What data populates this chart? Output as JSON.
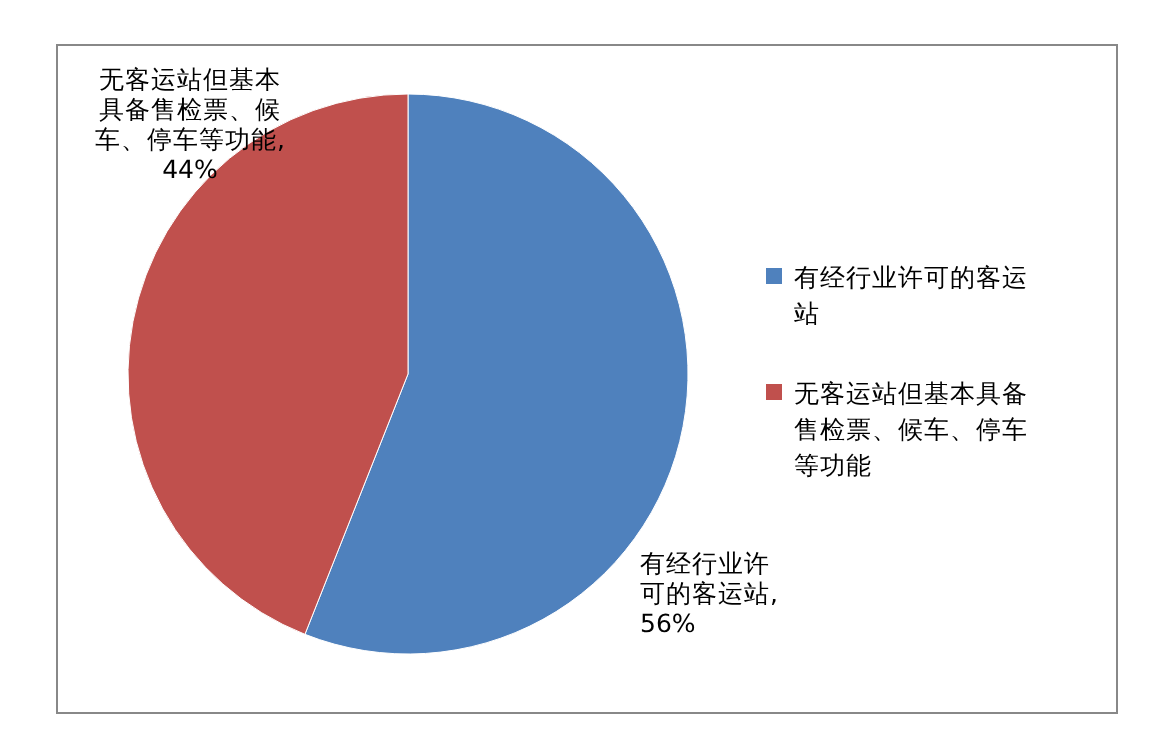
{
  "chart_data": {
    "type": "pie",
    "categories": [
      "有经行业许可的客运站",
      "无客运站但基本具备售检票、候车、停车等功能"
    ],
    "values": [
      56,
      44
    ],
    "colors": [
      "#4f81bd",
      "#c0504d"
    ],
    "value_labels": [
      "有经行业许可的客运站, 56%",
      "无客运站但基本具备售检票、候车、停车等功能, 44%"
    ],
    "legend": "right"
  }
}
